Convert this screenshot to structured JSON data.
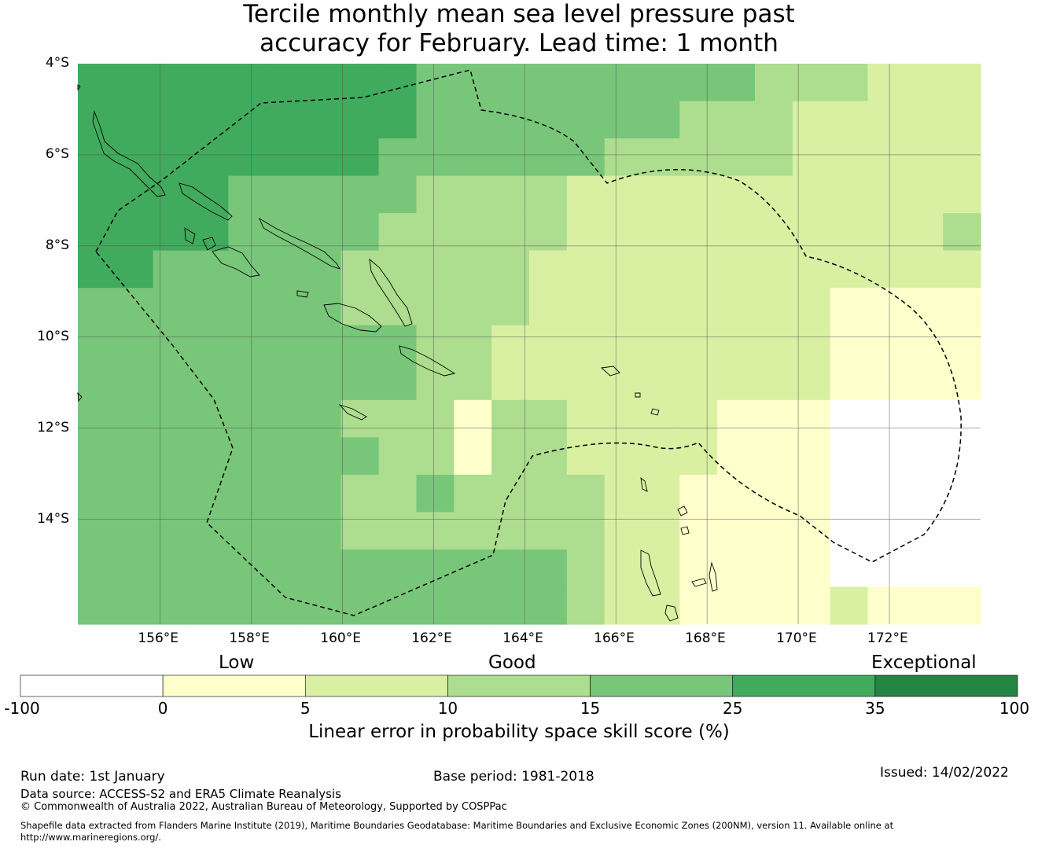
{
  "title_line1": "Tercile monthly mean sea level pressure past",
  "title_line2": "accuracy for February. Lead time: 1 month",
  "map": {
    "lat_labels": [
      "4°S",
      "6°S",
      "8°S",
      "10°S",
      "12°S",
      "14°S"
    ],
    "lon_labels": [
      "156°E",
      "158°E",
      "160°E",
      "162°E",
      "164°E",
      "166°E",
      "168°E",
      "170°E",
      "172°E"
    ],
    "lon_range": [
      154.2,
      174.0
    ],
    "lat_range": [
      -16.3,
      -4.0
    ],
    "grid_step_deg": 0.83,
    "category_colors": [
      "#ffffff",
      "#ffffcc",
      "#d9f0a3",
      "#addd8e",
      "#78c679",
      "#41ab5d",
      "#238443"
    ]
  },
  "colorbar": {
    "group_labels": [
      "Low",
      "Good",
      "Exceptional"
    ],
    "boundaries": [
      "-100",
      "0",
      "5",
      "10",
      "15",
      "25",
      "35",
      "100"
    ],
    "colors": [
      "#ffffff",
      "#ffffcc",
      "#d9f0a3",
      "#addd8e",
      "#78c679",
      "#41ab5d",
      "#238443"
    ],
    "title": "Linear error in probability space skill score (%)"
  },
  "footer": {
    "run_date": "Run date: 1st January",
    "base_period": "Base period: 1981-2018",
    "issued": "Issued: 14/02/2022",
    "data_source": "Data source: ACCESS-S2 and ERA5 Climate Reanalysis",
    "copyright": "© Commonwealth of Australia 2022, Australian Bureau of Meteorology, Supported by COSPPac",
    "shapefile_line1": "Shapefile data extracted from Flanders Marine Institute (2019), Maritime Boundaries Geodatabase: Maritime Boundaries and Exclusive Economic Zones (200NM), version 11. Available online at",
    "shapefile_line2": "http://www.marineregions.org/."
  }
}
